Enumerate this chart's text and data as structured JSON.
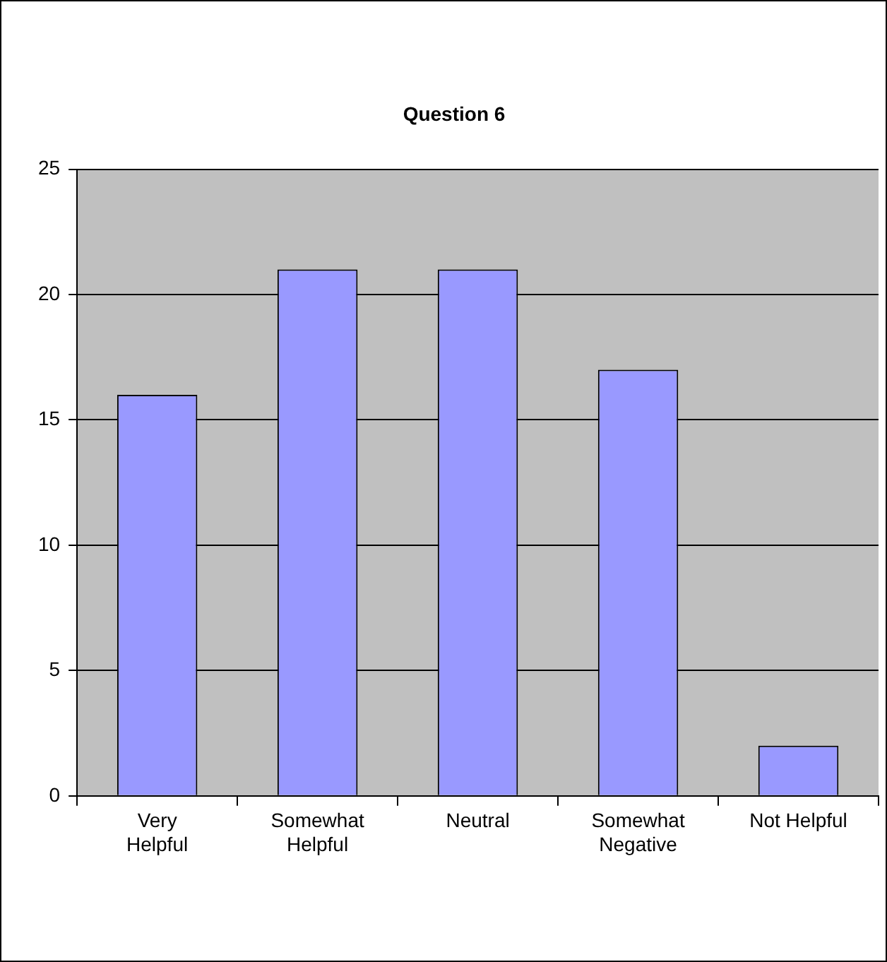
{
  "chart_data": {
    "type": "bar",
    "title": "Question 6",
    "categories": [
      "Very Helpful",
      "Somewhat Helpful",
      "Neutral",
      "Somewhat Negative",
      "Not Helpful"
    ],
    "values": [
      16,
      21,
      21,
      17,
      2
    ],
    "color": "#9999ff",
    "ylim": [
      0,
      25
    ],
    "yticks": [
      0,
      5,
      10,
      15,
      20,
      25
    ],
    "grid": "y",
    "legend": false
  }
}
